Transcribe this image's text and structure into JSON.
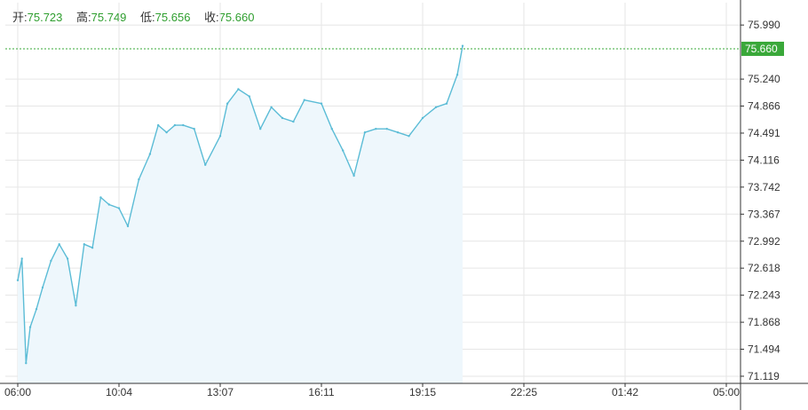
{
  "header": {
    "open_label": "开:",
    "open_value": "75.723",
    "high_label": "高:",
    "high_value": "75.749",
    "low_label": "低:",
    "low_value": "75.656",
    "close_label": "收:",
    "close_value": "75.660"
  },
  "colors": {
    "line": "#5bbcd6",
    "area": "#eef7fc",
    "grid": "#e6e6e6",
    "price_badge": "#3aa83a",
    "price_line": "#3aa83a",
    "ohlc_value": "#2e9e2e"
  },
  "chart_data": {
    "type": "area",
    "title": "",
    "xlabel": "",
    "ylabel": "",
    "x_ticks": [
      "06:00",
      "10:04",
      "13:07",
      "16:11",
      "19:15",
      "22:25",
      "01:42",
      "05:00"
    ],
    "y_ticks": [
      "75.990",
      "75.240",
      "74.866",
      "74.491",
      "74.116",
      "73.742",
      "73.367",
      "72.992",
      "72.618",
      "72.243",
      "71.868",
      "71.494",
      "71.119"
    ],
    "ylim": [
      71.02,
      76.3
    ],
    "last_price": "75.660",
    "grid": true,
    "series": [
      {
        "x": [
          "06:00",
          "06:10",
          "06:20",
          "06:30",
          "06:45",
          "07:00",
          "07:20",
          "07:40",
          "08:00",
          "08:20",
          "08:40",
          "09:00",
          "09:20",
          "09:40",
          "10:04",
          "10:20",
          "10:40",
          "11:00",
          "11:15",
          "11:30",
          "11:45",
          "12:00",
          "12:20",
          "12:40",
          "13:07",
          "13:20",
          "13:40",
          "14:00",
          "14:20",
          "14:40",
          "15:00",
          "15:20",
          "15:40",
          "16:11",
          "16:30",
          "16:50",
          "17:10",
          "17:30",
          "17:50",
          "18:10",
          "18:30",
          "18:50",
          "19:15",
          "19:40",
          "20:00",
          "20:20",
          "20:30"
        ],
        "values": [
          72.45,
          72.75,
          71.3,
          71.8,
          72.05,
          72.35,
          72.72,
          72.95,
          72.75,
          72.1,
          72.95,
          72.9,
          73.6,
          73.5,
          73.45,
          73.2,
          73.85,
          74.2,
          74.6,
          74.5,
          74.6,
          74.6,
          74.55,
          74.05,
          74.45,
          74.9,
          75.1,
          75.0,
          74.55,
          74.85,
          74.7,
          74.65,
          74.95,
          74.9,
          74.55,
          74.25,
          73.9,
          74.5,
          74.55,
          74.55,
          74.5,
          74.45,
          74.7,
          74.85,
          74.9,
          75.3,
          75.7
        ]
      }
    ]
  }
}
